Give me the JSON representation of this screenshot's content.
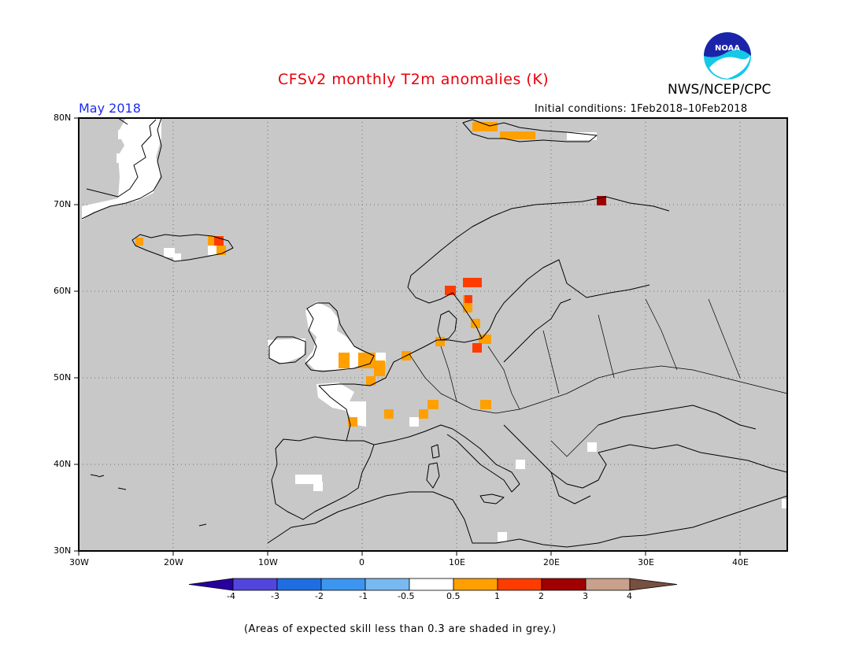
{
  "title": "CFSv2 monthly T2m anomalies (K)",
  "valid_label": "May 2018",
  "initial_conditions": "Initial conditions: 1Feb2018–10Feb2018",
  "agency": "NWS/NCEP/CPC",
  "logo_text": "NOAA",
  "footnote": "(Areas of expected skill less than 0.3 are shaded in grey.)",
  "colors": {
    "no_skill": "#c8c8c8",
    "neutral": "#ffffff",
    "pos_05_1": "#ffa000",
    "pos_1_2": "#ff3c00",
    "pos_2_3": "#a00000",
    "coast": "#000000"
  },
  "map": {
    "lat_labels": [
      "80N",
      "70N",
      "60N",
      "50N",
      "40N",
      "30N"
    ],
    "lon_labels": [
      "30W",
      "20W",
      "10W",
      "0",
      "10E",
      "20E",
      "30E",
      "40E"
    ],
    "lat_range": [
      30,
      80
    ],
    "lon_range": [
      -30,
      45
    ],
    "grid": true,
    "features": [
      "Greenland",
      "Iceland",
      "Svalbard",
      "Scandinavia",
      "British Isles",
      "Iberia",
      "Italy",
      "Balkans",
      "North Africa",
      "Turkey"
    ]
  },
  "colorbar": {
    "labels": [
      "-4",
      "-3",
      "-2",
      "-1",
      "-0.5",
      "0.5",
      "1",
      "2",
      "3",
      "4"
    ],
    "bins": [
      {
        "color": "#2800a0"
      },
      {
        "color": "#5046dc"
      },
      {
        "color": "#1e6ee1"
      },
      {
        "color": "#3c96f0"
      },
      {
        "color": "#78b9f0"
      },
      {
        "color": "#ffffff"
      },
      {
        "color": "#ffa000"
      },
      {
        "color": "#ff3c00"
      },
      {
        "color": "#a00000"
      },
      {
        "color": "#c8a08c"
      },
      {
        "color": "#785040"
      }
    ]
  }
}
